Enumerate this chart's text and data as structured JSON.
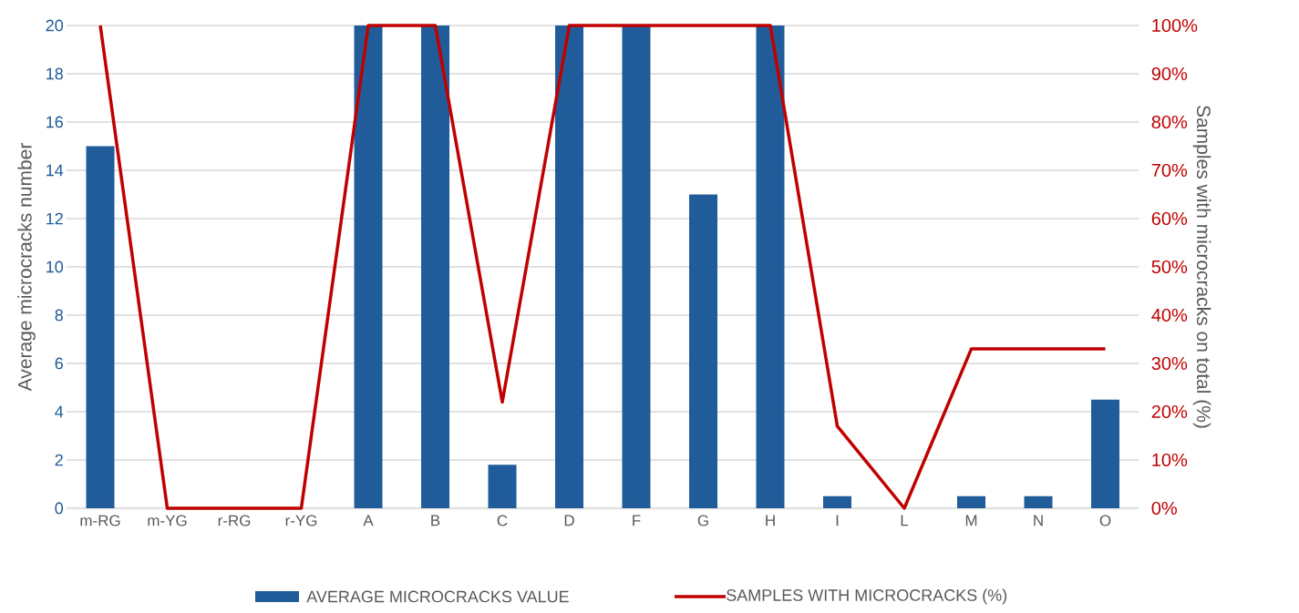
{
  "chart_data": {
    "type": "bar",
    "categories": [
      "m-RG",
      "m-YG",
      "r-RG",
      "r-YG",
      "A",
      "B",
      "C",
      "D",
      "F",
      "G",
      "H",
      "I",
      "L",
      "M",
      "N",
      "O"
    ],
    "series": [
      {
        "name": "AVERAGE MICROCRACKS VALUE",
        "color": "#1f5c99",
        "values": [
          15,
          0,
          0,
          0,
          20,
          20,
          1.8,
          20,
          20,
          13,
          20,
          0.5,
          0,
          0.5,
          0.5,
          4.5
        ]
      },
      {
        "name": "SAMPLES WITH MICROCRACKS (%)",
        "type": "line",
        "axis": "y2",
        "color": "#c00000",
        "values": [
          100,
          0,
          0,
          0,
          100,
          100,
          22,
          100,
          100,
          100,
          100,
          17,
          0,
          33,
          33,
          33
        ]
      }
    ],
    "ylabel": "Average microcracks number",
    "y2label": "Samples with microcracks on total (%)",
    "ylim": [
      0,
      20
    ],
    "yticks": [
      0,
      2,
      4,
      6,
      8,
      10,
      12,
      14,
      16,
      18,
      20
    ],
    "y2lim": [
      0,
      100
    ],
    "y2ticks": [
      {
        "value": 0,
        "label": "0%"
      },
      {
        "value": 10,
        "label": "10%"
      },
      {
        "value": 20,
        "label": "20%"
      },
      {
        "value": 30,
        "label": "30%"
      },
      {
        "value": 40,
        "label": "40%"
      },
      {
        "value": 50,
        "label": "50%"
      },
      {
        "value": 60,
        "label": "60%"
      },
      {
        "value": 70,
        "label": "70%"
      },
      {
        "value": 80,
        "label": "80%"
      },
      {
        "value": 90,
        "label": "90%"
      },
      {
        "value": 100,
        "label": "100%"
      }
    ],
    "grid": "y",
    "legend": "bottom",
    "marker": "none",
    "line_style": "solid"
  }
}
